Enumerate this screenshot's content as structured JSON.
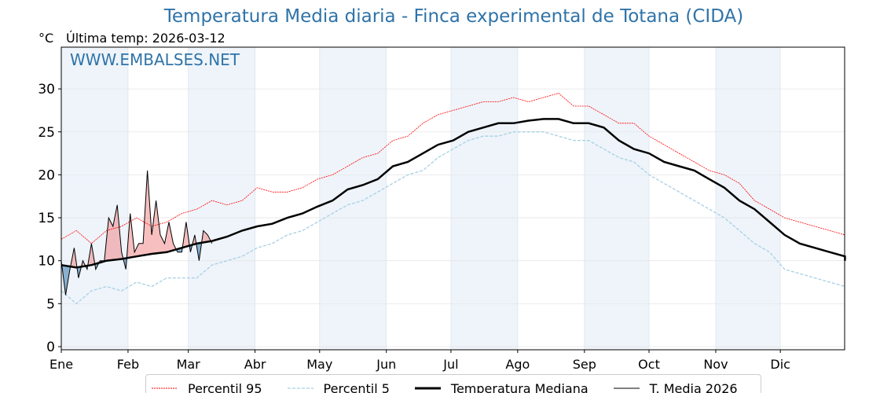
{
  "title": "Temperatura Media diaria - Finca experimental de Totana (CIDA)",
  "unit": "°C",
  "last_temp": "Última temp: 2026-03-12",
  "watermark": "WWW.EMBALSES.NET",
  "colors": {
    "p95": "#ff0000",
    "p5": "#a6d0e4",
    "median": "#000000",
    "above": "#f08080",
    "below": "#4682b4",
    "band": "#eef4fa"
  },
  "legend": [
    "Percentil 95",
    "Percentil 5",
    "Temperatura Mediana",
    "T. Media 2026"
  ],
  "chart_data": {
    "type": "line",
    "title": "Temperatura Media diaria - Finca experimental de Totana (CIDA)",
    "ylabel": "°C",
    "ylim": [
      -0.3,
      35
    ],
    "yticks": [
      0,
      5,
      10,
      15,
      20,
      25,
      30
    ],
    "months": [
      "Ene",
      "Feb",
      "Mar",
      "Abr",
      "May",
      "Jun",
      "Jul",
      "Ago",
      "Sep",
      "Oct",
      "Nov",
      "Dic"
    ],
    "month_days": [
      0,
      31,
      59,
      90,
      120,
      151,
      181,
      212,
      243,
      273,
      304,
      334
    ],
    "step_days": 7,
    "median": [
      9.5,
      9.2,
      9.5,
      10,
      10.2,
      10.5,
      10.8,
      11,
      11.5,
      12,
      12.3,
      12.8,
      13.5,
      14,
      14.3,
      15,
      15.5,
      16.3,
      17,
      18.3,
      18.8,
      19.5,
      21,
      21.5,
      22.5,
      23.5,
      24,
      25,
      25.5,
      26,
      26,
      26.3,
      26.5,
      26.5,
      26,
      26,
      25.5,
      24,
      23,
      22.5,
      21.5,
      21,
      20.5,
      19.5,
      18.5,
      17,
      16,
      14.5,
      13,
      12,
      11.5,
      11,
      10.5,
      10
    ],
    "p95": [
      12.5,
      13.5,
      12,
      13.5,
      14,
      15,
      14,
      14.5,
      15.5,
      16,
      17,
      16.5,
      17,
      18.5,
      18,
      18,
      18.5,
      19.5,
      20,
      21,
      22,
      22.5,
      24,
      24.5,
      26,
      27,
      27.5,
      28,
      28.5,
      28.5,
      29,
      28.5,
      29,
      29.5,
      28,
      28,
      27,
      26,
      26,
      24.5,
      23.5,
      22.5,
      21.5,
      20.5,
      20,
      19,
      17,
      16,
      15,
      14.5,
      14,
      13.5,
      13,
      13
    ],
    "p5": [
      6.5,
      5,
      6.5,
      7,
      6.5,
      7.5,
      7,
      8,
      8,
      8,
      9.5,
      10,
      10.5,
      11.5,
      12,
      13,
      13.5,
      14.5,
      15.5,
      16.5,
      17,
      18,
      19,
      20,
      20.5,
      22,
      23,
      24,
      24.5,
      24.5,
      25,
      25,
      25,
      24.5,
      24,
      24,
      23,
      22,
      21.5,
      20,
      19,
      18,
      17,
      16,
      15,
      13.5,
      12,
      11,
      9,
      8.5,
      8,
      7.5,
      7,
      7
    ],
    "t2026_step_days": 2,
    "t2026": [
      10,
      6,
      9,
      11.5,
      8,
      10,
      9,
      12,
      9,
      10,
      10,
      15,
      14,
      16.5,
      11,
      9,
      15.5,
      11,
      12,
      12,
      20.5,
      13,
      17,
      13,
      12,
      14.5,
      12,
      11,
      11,
      14.5,
      11,
      13,
      10,
      13.5,
      13,
      12
    ]
  }
}
